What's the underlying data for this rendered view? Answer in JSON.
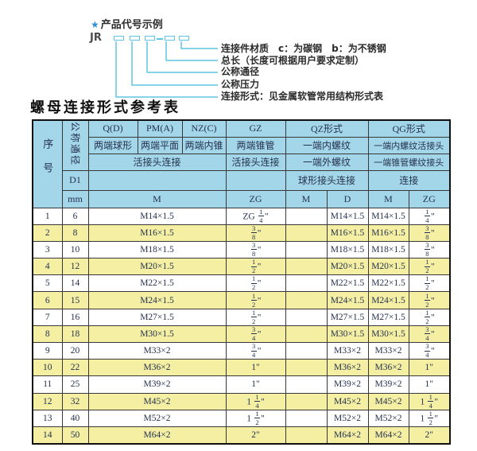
{
  "colors": {
    "accent_cyan": "#5ec6e2",
    "star_blue": "#2e8fd4",
    "header_bg": "#a4d6e9",
    "row_alt_bg": "#f5efa4",
    "table_text": "#24324f",
    "border": "#383838"
  },
  "diagram": {
    "star": "★",
    "heading": "产品代号示例",
    "code_prefix": "JR",
    "separator": "-",
    "labels": [
      "连接件材质　c：为碳钢　b：为不锈钢",
      "总长（长度可根据用户要求定制）",
      "公称通径",
      "公称压力",
      "连接形式：见金属软管常用结构形式表"
    ]
  },
  "table": {
    "title": "螺母连接形式参考表",
    "header": {
      "seq": "序号",
      "dn": "公称通径",
      "d1": "D1",
      "unit_mm": "mm",
      "groups": [
        "Q(D)",
        "PM(A)",
        "NZ(C)",
        "GZ",
        "QZ形式",
        "QG形式"
      ],
      "types": [
        "两端球形",
        "两端平面",
        "两端内锥",
        "两端锥管",
        "一端内螺纹",
        "一端内螺纹活接头"
      ],
      "conn": [
        "活接头连接",
        "活接头连接",
        "一端外螺纹",
        "一端锥管螺纹接头"
      ],
      "conn2": [
        "球形接头连接",
        "连接"
      ],
      "units": [
        "M",
        "ZG",
        "M",
        "D",
        "M",
        "ZG"
      ]
    },
    "rows": [
      [
        "1",
        "6",
        "M14×1.5",
        "ZG 1/4\"",
        "",
        "M14×1.5",
        "M14×1.5",
        "1/4\""
      ],
      [
        "2",
        "8",
        "M16×1.5",
        "3/8\"",
        "",
        "M16×1.5",
        "M16×1.5",
        "3/8\""
      ],
      [
        "3",
        "10",
        "M18×1.5",
        "3/8\"",
        "",
        "M18×1.5",
        "M18×1.5",
        "3/8\""
      ],
      [
        "4",
        "12",
        "M20×1.5",
        "1/2\"",
        "",
        "M20×1.5",
        "M20×1.5",
        "1/2\""
      ],
      [
        "5",
        "14",
        "M22×1.5",
        "1/2\"",
        "",
        "M22×1.5",
        "M22×1.5",
        "1/2\""
      ],
      [
        "6",
        "15",
        "M24×1.5",
        "1/2\"",
        "",
        "M24×1.5",
        "M24×1.5",
        "1/2\""
      ],
      [
        "7",
        "16",
        "M27×1.5",
        "1/2\"",
        "",
        "M27×1.5",
        "M27×1.5",
        "1/2\""
      ],
      [
        "8",
        "18",
        "M30×1.5",
        "3/4\"",
        "",
        "M30×1.5",
        "M30×1.5",
        "3/4\""
      ],
      [
        "9",
        "20",
        "M33×2",
        "3/4\"",
        "",
        "M33×2",
        "M33×2",
        "3/4\""
      ],
      [
        "10",
        "22",
        "M36×2",
        "1\"",
        "",
        "M36×2",
        "M36×2",
        "1\""
      ],
      [
        "11",
        "25",
        "M39×2",
        "1\"",
        "",
        "M39×2",
        "M39×2",
        "1\""
      ],
      [
        "12",
        "32",
        "M45×2",
        "1 1/4\"",
        "",
        "M45×2",
        "M45×2",
        "1 1/4\""
      ],
      [
        "13",
        "40",
        "M52×2",
        "1 1/2\"",
        "",
        "M52×2",
        "M52×2",
        "1 1/2\""
      ],
      [
        "14",
        "50",
        "M64×2",
        "2\"",
        "",
        "M64×2",
        "M64×2",
        "2\""
      ]
    ]
  }
}
